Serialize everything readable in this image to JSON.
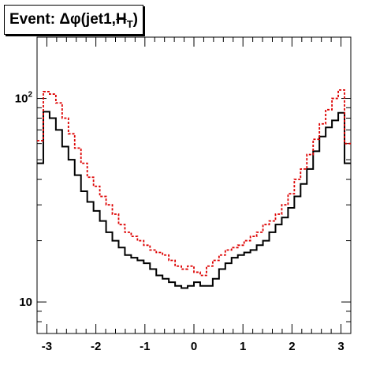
{
  "chart_data": {
    "type": "line",
    "title": {
      "main": "Event: Δφ(jet1,",
      "met": "H",
      "sub": "T",
      "close": ")"
    },
    "xlabel": "",
    "ylabel": "",
    "xlim": [
      -3.2,
      3.2
    ],
    "ylim": [
      7,
      200
    ],
    "yscale": "log",
    "grid": false,
    "legend": "none",
    "x_ticks": [
      -3,
      -2,
      -1,
      0,
      1,
      2,
      3
    ],
    "x_tick_labels": [
      "-3",
      "-2",
      "-1",
      "0",
      "1",
      "2",
      "3"
    ],
    "y_ticks": [
      10,
      100
    ],
    "y_tick_labels": [
      {
        "base": "10",
        "exp": ""
      },
      {
        "base": "10",
        "exp": "2"
      }
    ],
    "bins": 50,
    "series": [
      {
        "style": "solid",
        "color": "#000000",
        "values": [
          48,
          86,
          80,
          70,
          58,
          50,
          42,
          35,
          31,
          28,
          25,
          22,
          20,
          18.5,
          17,
          16.5,
          16,
          15.5,
          14.5,
          13.5,
          13,
          12.5,
          12,
          11.7,
          12,
          12.5,
          12,
          12,
          13,
          14.5,
          15.5,
          16.5,
          17,
          17.5,
          18,
          19,
          20,
          22,
          24,
          26,
          29,
          33,
          38,
          45,
          55,
          65,
          72,
          78,
          85,
          48
        ]
      },
      {
        "style": "dashed",
        "color": "#dd0000",
        "values": [
          62,
          108,
          105,
          95,
          80,
          67,
          57,
          48,
          41,
          37,
          33,
          30,
          27,
          24,
          22,
          21,
          20,
          19,
          18,
          17.5,
          17,
          16,
          15,
          14.5,
          15,
          14,
          13.5,
          15,
          16,
          17,
          18,
          18.5,
          19,
          20,
          21,
          22,
          24,
          25,
          27,
          30,
          34,
          40,
          45,
          53,
          63,
          75,
          88,
          100,
          110,
          60
        ]
      }
    ]
  }
}
